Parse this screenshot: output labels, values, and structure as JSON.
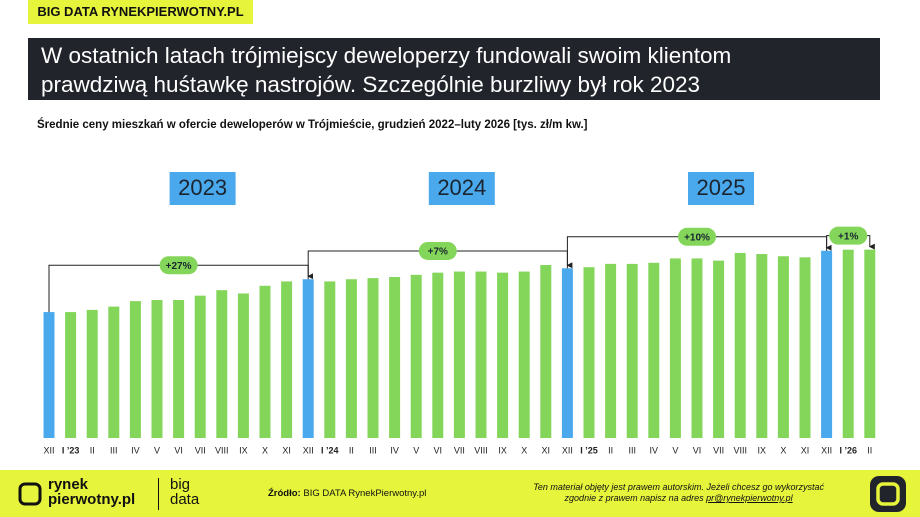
{
  "header": {
    "tag": "BIG DATA RYNEKPIERWOTNY.PL",
    "title": [
      "W ostatnich latach trójmiejscy deweloperzy fundowali swoim klientom",
      "prawdziwą huśtawkę nastrojów. Szczególnie burzliwy był rok 2023"
    ]
  },
  "chart_data": {
    "type": "bar",
    "subtitle": "Średnie ceny mieszkań w ofercie deweloperów w Trójmieście, grudzień 2022–luty 2026 [tys. zł/m kw.]",
    "categories": [
      "XII",
      "I ’23",
      "II",
      "III",
      "IV",
      "V",
      "VI",
      "VII",
      "VIII",
      "IX",
      "X",
      "XI",
      "XII",
      "I ’24",
      "II",
      "III",
      "IV",
      "V",
      "VI",
      "VII",
      "VIII",
      "IX",
      "X",
      "XI",
      "XII",
      "I ’25",
      "II",
      "III",
      "IV",
      "V",
      "VI",
      "VII",
      "VIII",
      "IX",
      "X",
      "XI",
      "XII",
      "I ’26",
      "II"
    ],
    "values": [
      11.5,
      11.5,
      11.7,
      12.0,
      12.5,
      12.6,
      12.6,
      13.0,
      13.5,
      13.2,
      13.9,
      14.3,
      14.5,
      14.3,
      14.5,
      14.6,
      14.7,
      14.9,
      15.1,
      15.2,
      15.2,
      15.1,
      15.2,
      15.8,
      15.5,
      15.6,
      15.9,
      15.9,
      16.0,
      16.4,
      16.4,
      16.2,
      16.9,
      16.8,
      16.6,
      16.5,
      17.1,
      17.2,
      17.2
    ],
    "colors": [
      "#4aa8ec",
      "#84d65a",
      "#84d65a",
      "#84d65a",
      "#84d65a",
      "#84d65a",
      "#84d65a",
      "#84d65a",
      "#84d65a",
      "#84d65a",
      "#84d65a",
      "#84d65a",
      "#4aa8ec",
      "#84d65a",
      "#84d65a",
      "#84d65a",
      "#84d65a",
      "#84d65a",
      "#84d65a",
      "#84d65a",
      "#84d65a",
      "#84d65a",
      "#84d65a",
      "#84d65a",
      "#4aa8ec",
      "#84d65a",
      "#84d65a",
      "#84d65a",
      "#84d65a",
      "#84d65a",
      "#84d65a",
      "#84d65a",
      "#84d65a",
      "#84d65a",
      "#84d65a",
      "#84d65a",
      "#4aa8ec",
      "#84d65a",
      "#84d65a"
    ],
    "ylim": [
      0,
      20
    ],
    "years": [
      "2023",
      "2024",
      "2025"
    ],
    "annotations": [
      "+27%",
      "+7%",
      "+10%",
      "+1%"
    ]
  },
  "footer": {
    "logo": [
      "rynek",
      "pierwotny.pl"
    ],
    "logo2": [
      "big",
      "data"
    ],
    "source_label": "Źródło:",
    "source": "BIG DATA RynekPierwotny.pl",
    "notice": [
      "Ten materiał objęty jest prawem autorskim. Jeżeli chcesz go wykorzystać",
      "zgodnie z prawem napisz na adres"
    ],
    "email": "pr@rynekpierwotny.pl"
  }
}
